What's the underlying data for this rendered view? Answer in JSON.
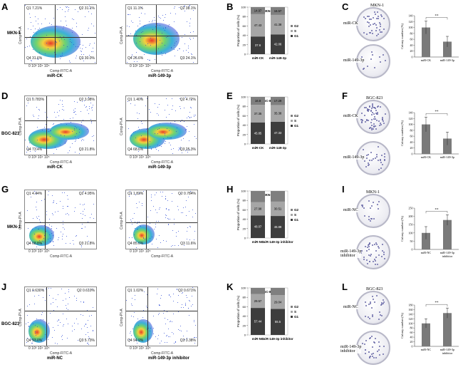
{
  "panel_letters": [
    "A",
    "B",
    "C",
    "D",
    "E",
    "F",
    "G",
    "H",
    "I",
    "J",
    "K",
    "L"
  ],
  "rows": [
    {
      "cell_line": "MKN-1",
      "flow": [
        {
          "caption": "miR-CK",
          "q1": "Q1 7.21%",
          "q2": "Q2 31.1%",
          "q3": "Q3 30.0%",
          "q4": "Q4 31.6%",
          "xlabel": "Comp-FITC-A",
          "ylabel": "Comp-PI-A",
          "ticks": "0  10³  10⁴  10⁵"
        },
        {
          "caption": "miR-149-3p",
          "q1": "Q1 11.1%",
          "q2": "Q2 38.1%",
          "q3": "Q3 24.1%",
          "q4": "Q4 26.6%",
          "xlabel": "Comp-FITC-A",
          "ylabel": "Comp-PI-A",
          "ticks": "0  10³  10⁴  10⁵"
        }
      ],
      "bar_title": "MKN-1",
      "colony_title": "MKN-1",
      "dish_labels": [
        [
          "miR-CK"
        ],
        [
          "miR-149-3p"
        ]
      ]
    },
    {
      "cell_line": "BGC-823",
      "flow": [
        {
          "caption": "miR-CK",
          "q1": "Q1 0.783%",
          "q2": "Q2 3.98%",
          "q3": "Q3 21.8%",
          "q4": "Q4 73.4%",
          "xlabel": "Comp-FITC-A",
          "ylabel": "Comp-PI-A",
          "ticks": "0  10³  10⁴  10⁵"
        },
        {
          "caption": "miR-149-3p",
          "q1": "Q1 1.40%",
          "q2": "Q2 4.72%",
          "q3": "Q3 25.3%",
          "q4": "Q4 68.6%",
          "xlabel": "Comp-FITC-A",
          "ylabel": "Comp-PI-A",
          "ticks": "0  10³  10⁴  10⁵"
        }
      ],
      "bar_title": "BGC-823",
      "colony_title": "BGC-823",
      "dish_labels": [
        [
          "miR-CK"
        ],
        [
          "miR-149-3p"
        ]
      ]
    },
    {
      "cell_line": "MKN-1",
      "flow": [
        {
          "caption": "",
          "q1": "Q1 4.44%",
          "q2": "Q2 4.95%",
          "q3": "Q3 21.8%",
          "q4": "Q4 68.8%",
          "xlabel": "Comp-FITC-A",
          "ylabel": "Comp-PI-A",
          "ticks": "0  10³  10⁴  10⁵"
        },
        {
          "caption": "",
          "q1": "Q1 1.83%",
          "q2": "Q2 0.784%",
          "q3": "Q3 11.6%",
          "q4": "Q4 85.6%",
          "xlabel": "Comp-FITC-A",
          "ylabel": "Comp-PI-A",
          "ticks": "0  10³  10⁴  10⁵"
        }
      ],
      "bar_title": "MKN-1",
      "colony_title": "MKN-1",
      "dish_labels": [
        [
          "miR-NC"
        ],
        [
          "miR-149-3p",
          "inhibitor"
        ]
      ]
    },
    {
      "cell_line": "BGC-823",
      "flow": [
        {
          "caption": "miR-NC",
          "q1": "Q1 0.630%",
          "q2": "Q2 0.610%",
          "q3": "Q3 5.73%",
          "q4": "Q4 93.0%",
          "xlabel": "Comp-FITC-A",
          "ylabel": "Comp-PI-A",
          "ticks": "0  10³  10⁴  10⁵"
        },
        {
          "caption": "miR-149-3p inhibitor",
          "q1": "Q1 1.02%",
          "q2": "Q2 0.671%",
          "q3": "Q3 3.38%",
          "q4": "Q4 94.9%",
          "xlabel": "Comp-FITC-A",
          "ylabel": "Comp-PI-A",
          "ticks": "0  10³  10⁴  10⁵"
        }
      ],
      "bar_title": "BGC-823",
      "colony_title": "BGC-823",
      "dish_labels": [
        [
          "miR-NC"
        ],
        [
          "miR-149-3p",
          "inhibitor"
        ]
      ]
    }
  ],
  "colors": {
    "G1": "#3d3d3d",
    "S": "#a6a6a6",
    "G2": "#7f7f7f",
    "colony_bar": "#7a7a7a",
    "dot_core": "#e83a2a"
  },
  "chart_data": [
    {
      "type": "bar",
      "panel": "B",
      "title": "MKN-1",
      "ylabel": "Proportion of cells (%)",
      "categories": [
        "miR-CK",
        "miR-149-3p"
      ],
      "ylim": [
        0,
        100
      ],
      "yticks": [
        "0",
        "20",
        "40",
        "60",
        "80",
        "100"
      ],
      "legend": [
        "G2",
        "S",
        "G1"
      ],
      "series": [
        {
          "name": "G1",
          "values": [
            37.6,
            42.06
          ]
        },
        {
          "name": "S",
          "values": [
            47.43,
            41.38
          ]
        },
        {
          "name": "G2",
          "values": [
            14.97,
            16.57
          ]
        }
      ],
      "data_labels": {
        "G1": [
          "37.6",
          "42.06"
        ],
        "S": [
          "47.43",
          "41.38"
        ],
        "G2": [
          "14.97",
          "16.57"
        ]
      }
    },
    {
      "type": "bar",
      "panel": "E",
      "title": "BGC-823",
      "ylabel": "Proportion of cells (%)",
      "categories": [
        "miR-CK",
        "miR-149-3p"
      ],
      "ylim": [
        0,
        100
      ],
      "yticks": [
        "0",
        "20",
        "40",
        "60",
        "80",
        "100"
      ],
      "legend": [
        "G2",
        "S",
        "G1"
      ],
      "series": [
        {
          "name": "G1",
          "values": [
            45.85,
            47.33
          ]
        },
        {
          "name": "S",
          "values": [
            37.35,
            35.38
          ]
        },
        {
          "name": "G2",
          "values": [
            16.8,
            17.29
          ]
        }
      ],
      "data_labels": {
        "G1": [
          "45.85",
          "47.33"
        ],
        "S": [
          "37.35",
          "35.38"
        ],
        "G2": [
          "16.8",
          "17.29"
        ]
      }
    },
    {
      "type": "bar",
      "panel": "H",
      "title": "MKN-1",
      "ylabel": "Proportion of cells (%)",
      "categories": [
        "miR-NC",
        "miR-149-3p inhibitor"
      ],
      "ylim": [
        0,
        100
      ],
      "yticks": [
        "0",
        "20",
        "40",
        "60",
        "80",
        "100"
      ],
      "legend": [
        "G2",
        "S",
        "G1"
      ],
      "series": [
        {
          "name": "G1",
          "values": [
            48.07,
            46.89
          ]
        },
        {
          "name": "S",
          "values": [
            27.98,
            30.51
          ]
        },
        {
          "name": "G2",
          "values": [
            23.95,
            22.6
          ]
        }
      ],
      "data_labels": {
        "G1": [
          "48.07",
          "46.89"
        ],
        "S": [
          "27.98",
          "30.51"
        ],
        "G2": [
          "",
          ""
        ]
      }
    },
    {
      "type": "bar",
      "panel": "K",
      "title": "BGC-823",
      "ylabel": "Proportion of cells (%)",
      "categories": [
        "miR-NC",
        "miR-149-3p inhibitor"
      ],
      "ylim": [
        0,
        100
      ],
      "yticks": [
        "0",
        "20",
        "40",
        "60",
        "80",
        "100"
      ],
      "legend": [
        "G2",
        "S",
        "G1"
      ],
      "series": [
        {
          "name": "G1",
          "values": [
            57.44,
            55.5
          ]
        },
        {
          "name": "S",
          "values": [
            29.57,
            29.04
          ]
        },
        {
          "name": "G2",
          "values": [
            12.99,
            15.46
          ]
        }
      ],
      "data_labels": {
        "G1": [
          "57.44",
          "55.5"
        ],
        "S": [
          "29.57",
          "29.04"
        ],
        "G2": [
          "",
          ""
        ]
      }
    },
    {
      "type": "bar",
      "panel": "C",
      "ylabel": "Colony number (%)",
      "categories": [
        "miR-CK",
        "miR-149-3p"
      ],
      "ylim": [
        0,
        140
      ],
      "yticks": [
        "0",
        "20",
        "40",
        "60",
        "80",
        "100",
        "120",
        "140"
      ],
      "values": [
        100,
        52
      ],
      "errors": [
        22,
        18
      ],
      "significance": "**"
    },
    {
      "type": "bar",
      "panel": "F",
      "ylabel": "Colony number (%)",
      "categories": [
        "miR-CK",
        "miR-149-3p"
      ],
      "ylim": [
        0,
        140
      ],
      "yticks": [
        "0",
        "20",
        "40",
        "60",
        "80",
        "100",
        "120",
        "140"
      ],
      "values": [
        100,
        52
      ],
      "errors": [
        25,
        22
      ],
      "significance": "**"
    },
    {
      "type": "bar",
      "panel": "I",
      "ylabel": "Colony number (%)",
      "categories": [
        "miR-NC",
        "miR-149-3p inhibitor"
      ],
      "ylim": [
        0,
        250
      ],
      "yticks": [
        "0",
        "50",
        "100",
        "150",
        "200",
        "250"
      ],
      "values": [
        100,
        178
      ],
      "errors": [
        38,
        32
      ],
      "significance": "**"
    },
    {
      "type": "bar",
      "panel": "L",
      "ylabel": "Colony number (%)",
      "categories": [
        "miR-NC",
        "miR-149-3p inhibitor"
      ],
      "ylim": [
        0,
        180
      ],
      "yticks": [
        "0",
        "20",
        "40",
        "60",
        "80",
        "100",
        "120",
        "140",
        "160",
        "180"
      ],
      "values": [
        100,
        145
      ],
      "errors": [
        20,
        22
      ],
      "significance": "**"
    }
  ]
}
